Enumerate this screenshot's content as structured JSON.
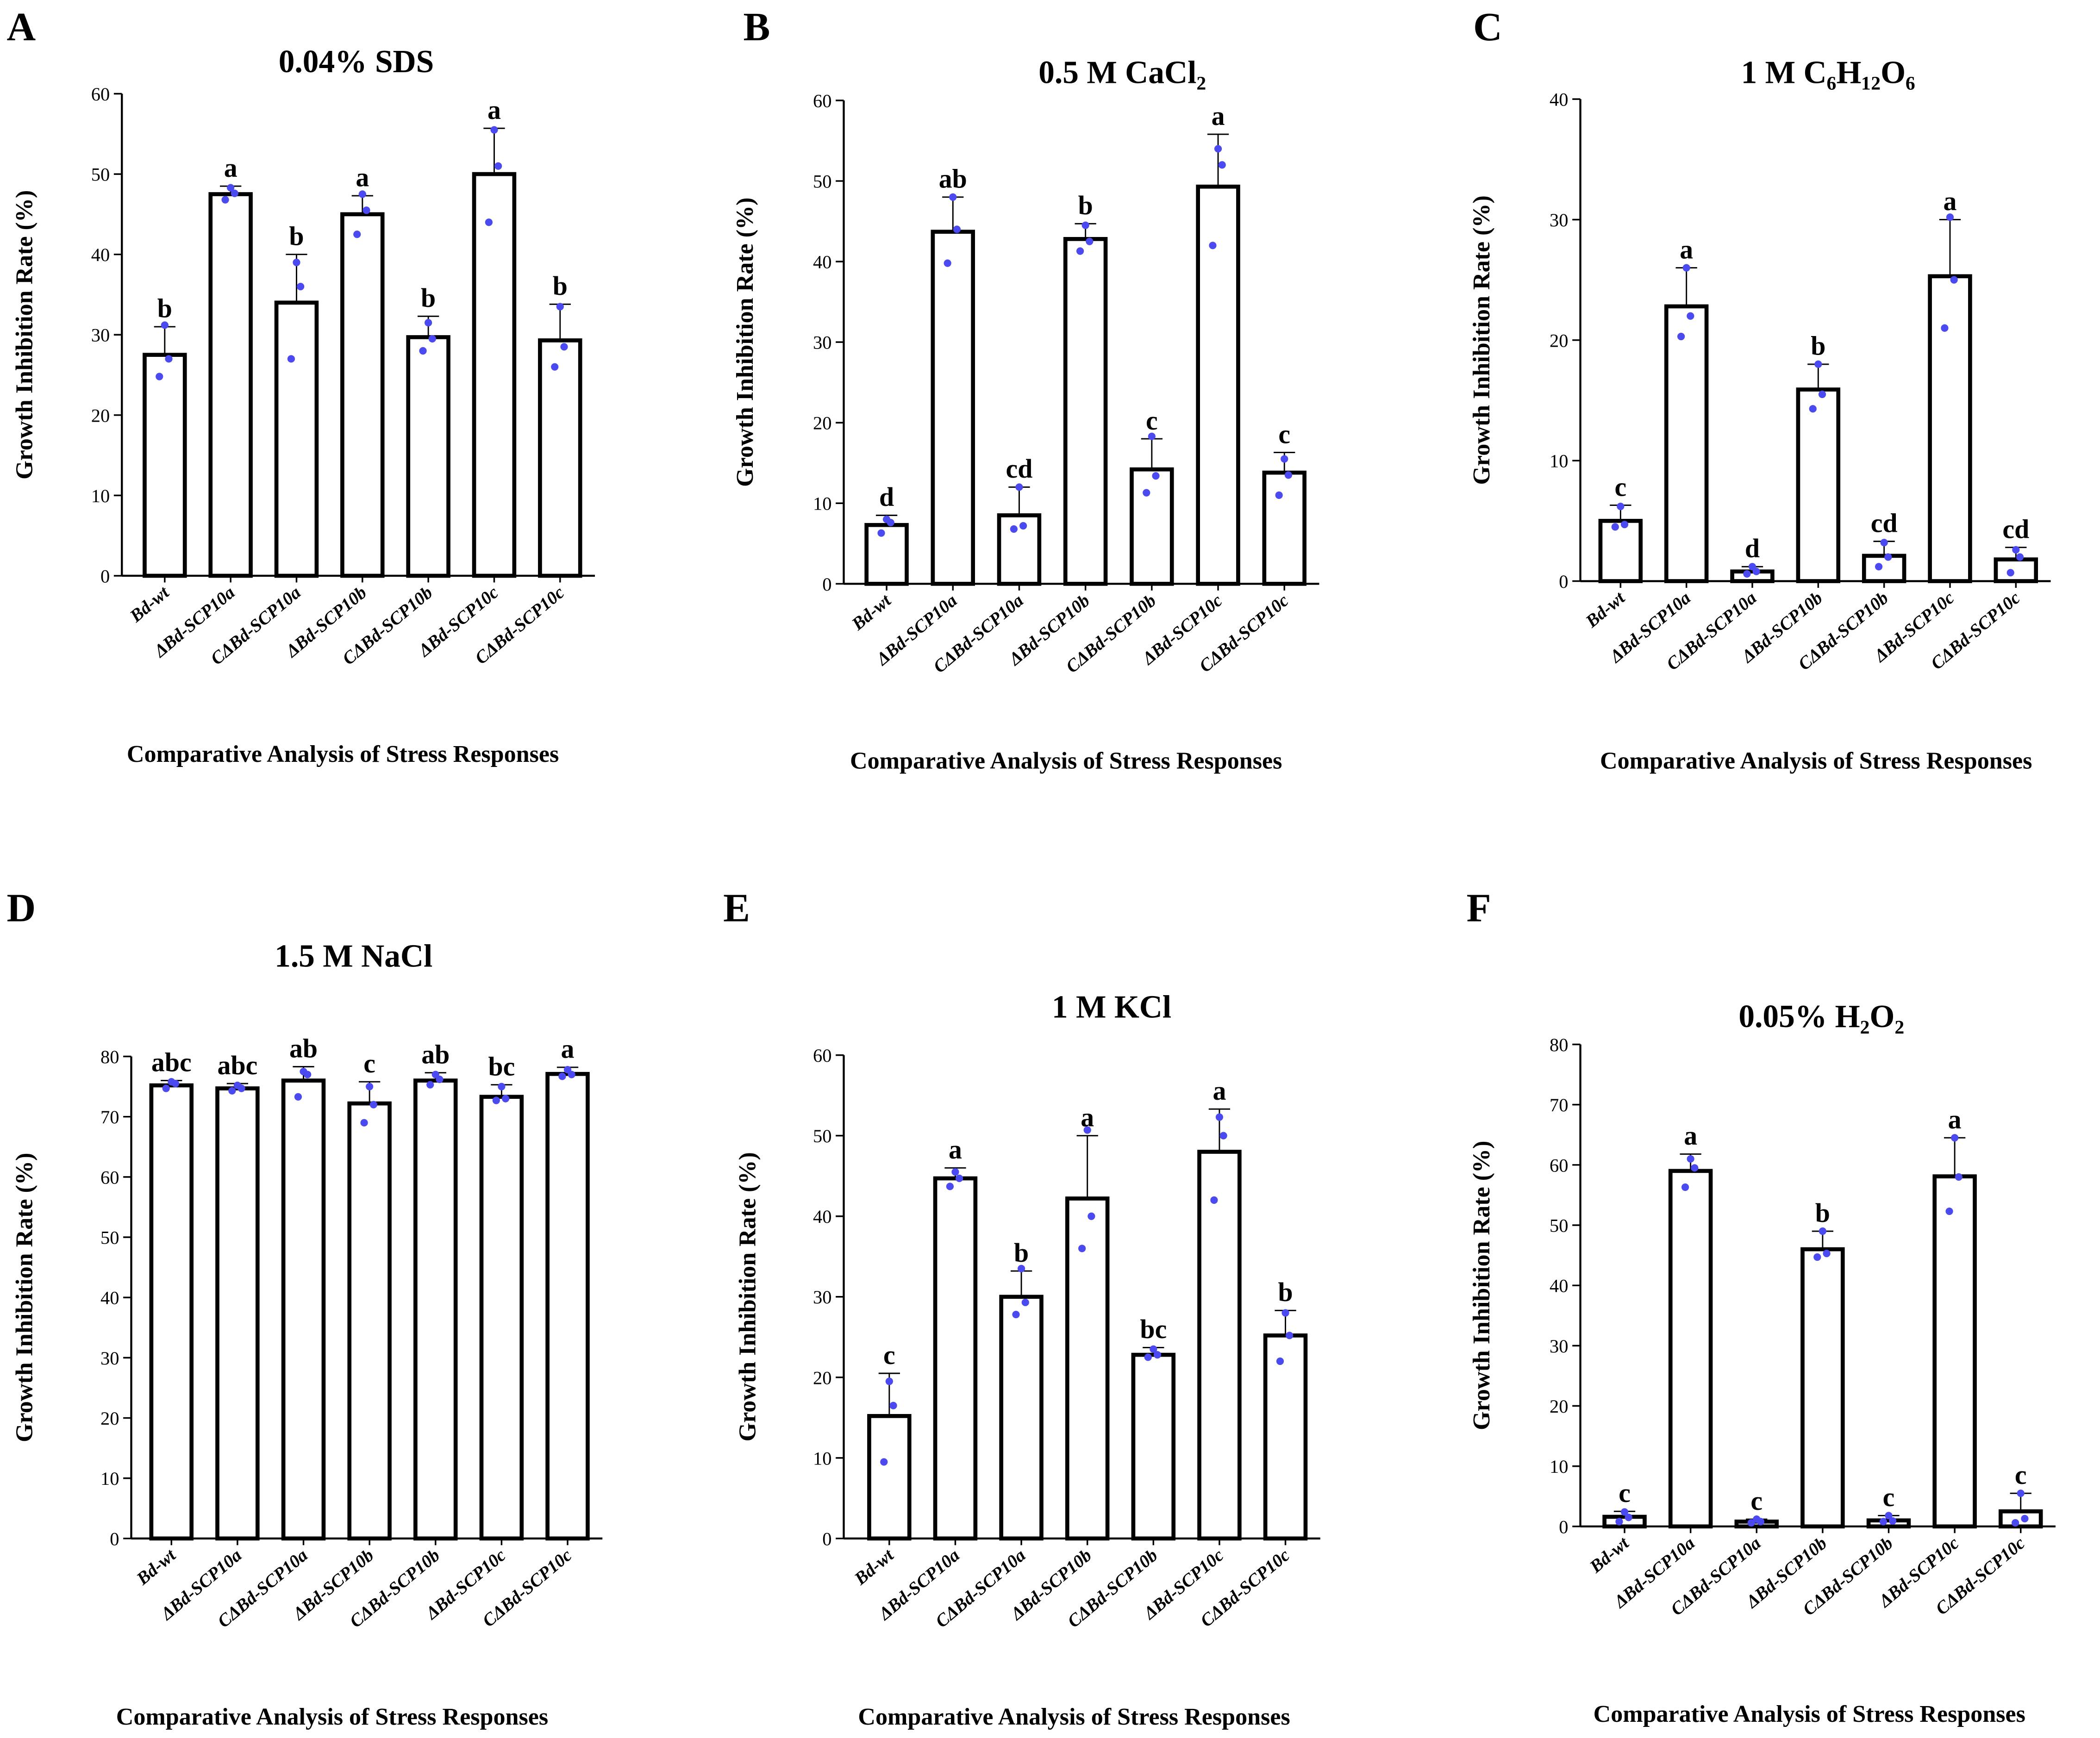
{
  "colors": {
    "bar_fill": "#ffffff",
    "bar_stroke": "#000000",
    "point": "#4a4af0"
  },
  "chart_data": [
    {
      "panel": "A",
      "type": "bar",
      "title": "0.04% SDS",
      "ylabel": "Growth Inhibition Rate (%)",
      "xlabel": "Comparative Analysis of Stress Responses",
      "ylim": [
        0,
        60
      ],
      "yticks": [
        0,
        10,
        20,
        30,
        40,
        50,
        60
      ],
      "categories": [
        "Bd-wt",
        "ΔBd-SCP10a",
        "CΔBd-SCP10a",
        "ΔBd-SCP10b",
        "CΔBd-SCP10b",
        "ΔBd-SCP10c",
        "CΔBd-SCP10c"
      ],
      "values": [
        27.5,
        47.5,
        34,
        45,
        29.7,
        50,
        29.3
      ],
      "error_upper": [
        31,
        48.5,
        40,
        47.3,
        32.3,
        55.7,
        33.8
      ],
      "points": [
        [
          24.8,
          27,
          31.2
        ],
        [
          46.8,
          47.6,
          48.3
        ],
        [
          27,
          36,
          39
        ],
        [
          42.5,
          45.5,
          47.5
        ],
        [
          28,
          29.5,
          31.5
        ],
        [
          44,
          51,
          55.5
        ],
        [
          26,
          28.5,
          33.5
        ]
      ],
      "significance": [
        "b",
        "a",
        "b",
        "a",
        "b",
        "a",
        "b"
      ]
    },
    {
      "panel": "B",
      "type": "bar",
      "title": "0.5 M CaCl₂",
      "ylabel": "Growth Inhibition Rate (%)",
      "xlabel": "Comparative Analysis of Stress Responses",
      "ylim": [
        0,
        60
      ],
      "yticks": [
        0,
        10,
        20,
        30,
        40,
        50,
        60
      ],
      "categories": [
        "Bd-wt",
        "ΔBd-SCP10a",
        "CΔBd-SCP10a",
        "ΔBd-SCP10b",
        "CΔBd-SCP10b",
        "ΔBd-SCP10c",
        "CΔBd-SCP10c"
      ],
      "values": [
        7.3,
        43.7,
        8.5,
        42.8,
        14.2,
        49.3,
        13.8
      ],
      "error_upper": [
        8.5,
        48,
        12,
        44.7,
        18,
        55.8,
        16.3
      ],
      "points": [
        [
          6.3,
          7.6,
          8
        ],
        [
          39.8,
          44,
          48
        ],
        [
          6.8,
          7.2,
          12
        ],
        [
          41.3,
          42.5,
          44.5
        ],
        [
          11.3,
          13.4,
          18.3
        ],
        [
          42,
          52,
          54
        ],
        [
          11,
          13.5,
          15.5
        ]
      ],
      "significance": [
        "d",
        "ab",
        "cd",
        "b",
        "c",
        "a",
        "c"
      ]
    },
    {
      "panel": "C",
      "type": "bar",
      "title": "1 M C₆H₁₂O₆",
      "ylabel": "Growth Inhibition Rate (%)",
      "xlabel": "Comparative Analysis of Stress Responses",
      "ylim": [
        0,
        40
      ],
      "yticks": [
        0,
        10,
        20,
        30,
        40
      ],
      "categories": [
        "Bd-wt",
        "ΔBd-SCP10a",
        "CΔBd-SCP10a",
        "ΔBd-SCP10b",
        "CΔBd-SCP10b",
        "ΔBd-SCP10c",
        "CΔBd-SCP10c"
      ],
      "values": [
        5,
        22.8,
        0.8,
        15.9,
        2.1,
        25.3,
        1.8
      ],
      "error_upper": [
        6.3,
        26,
        1.2,
        18,
        3.3,
        30,
        2.8
      ],
      "points": [
        [
          4.5,
          4.7,
          6.2
        ],
        [
          20.3,
          22,
          26
        ],
        [
          0.6,
          0.8,
          1.2
        ],
        [
          14.3,
          15.5,
          18
        ],
        [
          1.2,
          2,
          3.2
        ],
        [
          21,
          25,
          30.2
        ],
        [
          0.7,
          2,
          2.6
        ]
      ],
      "significance": [
        "c",
        "a",
        "d",
        "b",
        "cd",
        "a",
        "cd"
      ]
    },
    {
      "panel": "D",
      "type": "bar",
      "title": "1.5 M NaCl",
      "ylabel": "Growth Inhibition Rate (%)",
      "xlabel": "Comparative Analysis of Stress Responses",
      "ylim": [
        0,
        80
      ],
      "yticks": [
        0,
        10,
        20,
        30,
        40,
        50,
        60,
        70,
        80
      ],
      "categories": [
        "Bd-wt",
        "ΔBd-SCP10a",
        "CΔBd-SCP10a",
        "ΔBd-SCP10b",
        "CΔBd-SCP10b",
        "ΔBd-SCP10c",
        "CΔBd-SCP10c"
      ],
      "values": [
        75.2,
        74.7,
        76,
        72.2,
        76,
        73.3,
        77.1
      ],
      "error_upper": [
        76,
        75.5,
        78.3,
        75.8,
        77.3,
        75.3,
        78.2
      ],
      "points": [
        [
          74.7,
          75.5,
          75.8
        ],
        [
          74.3,
          74.7,
          75.2
        ],
        [
          73.3,
          77,
          77.5
        ],
        [
          69,
          72,
          75
        ],
        [
          75.3,
          76.2,
          77
        ],
        [
          72.7,
          73,
          75
        ],
        [
          76.7,
          77,
          77.8
        ]
      ],
      "significance": [
        "abc",
        "abc",
        "ab",
        "c",
        "ab",
        "bc",
        "a"
      ]
    },
    {
      "panel": "E",
      "type": "bar",
      "title": "1 M KCl",
      "ylabel": "Growth Inhibition Rate (%)",
      "xlabel": "Comparative Analysis of Stress Responses",
      "ylim": [
        0,
        60
      ],
      "yticks": [
        0,
        10,
        20,
        30,
        40,
        50,
        60
      ],
      "categories": [
        "Bd-wt",
        "ΔBd-SCP10a",
        "CΔBd-SCP10a",
        "ΔBd-SCP10b",
        "CΔBd-SCP10b",
        "ΔBd-SCP10c",
        "CΔBd-SCP10c"
      ],
      "values": [
        15.2,
        44.7,
        30,
        42.2,
        22.8,
        48,
        25.2
      ],
      "error_upper": [
        20.5,
        46,
        33.2,
        50,
        23.7,
        53.3,
        28.3
      ],
      "points": [
        [
          9.5,
          16.5,
          19.5
        ],
        [
          43.7,
          44.7,
          45.5
        ],
        [
          27.8,
          29.3,
          33.5
        ],
        [
          36,
          40,
          50.7
        ],
        [
          22.5,
          22.8,
          23.5
        ],
        [
          42,
          50,
          52.3
        ],
        [
          22,
          25.2,
          28
        ]
      ],
      "significance": [
        "c",
        "a",
        "b",
        "a",
        "bc",
        "a",
        "b"
      ]
    },
    {
      "panel": "F",
      "type": "bar",
      "title": "0.05% H₂O₂",
      "ylabel": "Growth Inhibition Rate (%)",
      "xlabel": "Comparative Analysis of Stress Responses",
      "ylim": [
        0,
        80
      ],
      "yticks": [
        0,
        10,
        20,
        30,
        40,
        50,
        60,
        70,
        80
      ],
      "categories": [
        "Bd-wt",
        "ΔBd-SCP10a",
        "CΔBd-SCP10a",
        "ΔBd-SCP10b",
        "CΔBd-SCP10b",
        "ΔBd-SCP10c",
        "CΔBd-SCP10c"
      ],
      "values": [
        1.6,
        59,
        0.8,
        46,
        1.0,
        58.1,
        2.5
      ],
      "error_upper": [
        2.5,
        61.8,
        1.2,
        49,
        1.8,
        64.5,
        5.5
      ],
      "points": [
        [
          0.8,
          1.5,
          2.4
        ],
        [
          56.3,
          59.5,
          61
        ],
        [
          0.6,
          0.8,
          1.2
        ],
        [
          44.7,
          45.3,
          49
        ],
        [
          0.8,
          0.9,
          1.8
        ],
        [
          52.3,
          58,
          64.5
        ],
        [
          0.6,
          1.3,
          5.5
        ]
      ],
      "significance": [
        "c",
        "a",
        "c",
        "b",
        "c",
        "a",
        "c"
      ]
    }
  ]
}
